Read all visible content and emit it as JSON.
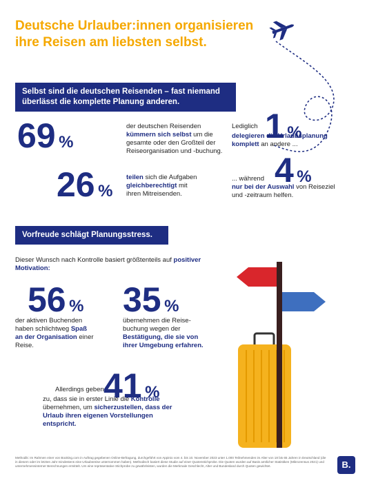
{
  "title": [
    "Deutsche Urlauber:innen organisieren",
    "ihre Reisen am liebsten selbst."
  ],
  "unit": "%",
  "section1": {
    "heading": [
      "Selbst sind die deutschen Reisenden – fast niemand",
      "überlässt die komplette Planung anderen."
    ]
  },
  "section2": {
    "heading": "Vorfreude schlägt Planungsstress.",
    "intro": [
      {
        "t": "Dieser Wunsch nach Kontrolle basiert größtenteils auf ",
        "b": false
      },
      {
        "t": "positiver Motivation:",
        "b": true
      }
    ]
  },
  "stats": [
    {
      "value": 69,
      "text": [
        {
          "t": "der deutschen Reisenden ",
          "b": false
        },
        {
          "t": "kümmern sich selbst",
          "b": true
        },
        {
          "t": " um die gesamte oder den Großteil der Reiseorganisation und -buchung.",
          "b": false
        }
      ]
    },
    {
      "value": 1,
      "prefix": "Lediglich",
      "text": [
        {
          "t": "delegieren die Urlaubsplanung komplett",
          "b": true
        },
        {
          "t": " an andere ...",
          "b": false
        }
      ]
    },
    {
      "value": 26,
      "text": [
        {
          "t": "teilen",
          "b": true
        },
        {
          "t": " sich die Aufgaben ",
          "b": false
        },
        {
          "t": "gleichberechtigt",
          "b": true
        },
        {
          "t": " mit ihren Mitreisenden.",
          "b": false
        }
      ]
    },
    {
      "value": 4,
      "prefix": "... während",
      "text": [
        {
          "t": "nur bei der Auswahl",
          "b": true
        },
        {
          "t": " von Reiseziel und -zeitraum helfen.",
          "b": false
        }
      ]
    },
    {
      "value": 56,
      "text": [
        {
          "t": "der aktiven Buchenden haben schlichtweg ",
          "b": false
        },
        {
          "t": "Spaß an der Organisation",
          "b": true
        },
        {
          "t": " einer Reise.",
          "b": false
        }
      ]
    },
    {
      "value": 35,
      "text": [
        {
          "t": "übernehmen die Reise­buchung wegen der ",
          "b": false
        },
        {
          "t": "Bestätigung, die sie von ihrer Umgebung erfahren.",
          "b": true
        }
      ]
    },
    {
      "value": 41,
      "prefix": "Allerdings geben",
      "text": [
        {
          "t": "zu, dass sie in erster Linie die ",
          "b": false
        },
        {
          "t": "Kontrolle",
          "b": true
        },
        {
          "t": " übernehmen, um ",
          "b": false
        },
        {
          "t": "sicherzustellen, dass der Urlaub ihren eigenen Vorstellungen entspricht.",
          "b": true
        }
      ]
    }
  ],
  "footer": "Methodik: Im Rahmen einer von Booking.com in Auftrag gegebenen Online-Befragung, durchgeführt von Appinio vom 4. bis 10. November 2023 unter 1.000 Teilnehmenden im Alter von 18 bis 65 Jahren in Deutschland (die in diesem oder im letzten Jahr mindestens eine Urlaubsreise unternommen haben). Methodisch basiert diese Studie auf einer Quotenstichprobe. Die Quoten wurden auf Basis amtlicher Statistiken (Mikrozensus 2021) und unternehmensinterner Berechnungen ermittelt. Um eine repräsentative Stichprobe zu gewährleisten, wurden die Merkmale Geschlecht, Alter und Bundesland durch Quoten gewichtet.",
  "logo": "B."
}
